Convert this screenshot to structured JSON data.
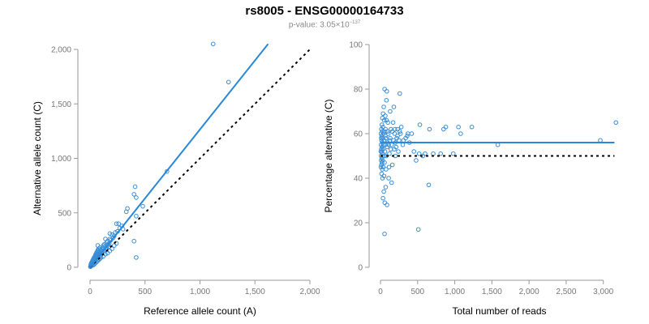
{
  "header": {
    "title": "rs8005 - ENSG00000164733",
    "pvalue_prefix": "p-value: 3.05",
    "pvalue_times": "×",
    "pvalue_base": "10",
    "pvalue_exponent": "−137"
  },
  "colors": {
    "points": "#3b8fd6",
    "fit_line": "#2a88d8",
    "reference_line": "#000000"
  },
  "chart_data": [
    {
      "type": "scatter",
      "xlabel": "Reference allele count (A)",
      "ylabel": "Alternative allele count (C)",
      "xlim": [
        0,
        2000
      ],
      "ylim": [
        0,
        2000
      ],
      "xticks": [
        0,
        500,
        1000,
        1500,
        2000
      ],
      "xtick_labels": [
        "0",
        "500",
        "1,000",
        "1,500",
        "2,000"
      ],
      "yticks": [
        0,
        500,
        1000,
        1500,
        2000
      ],
      "ytick_labels": [
        "0",
        "500",
        "1,000",
        "1,500",
        "2,000"
      ],
      "fit_line": {
        "x": [
          0,
          1620
        ],
        "y": [
          0,
          2050
        ]
      },
      "reference_line": {
        "x": [
          0,
          2000
        ],
        "y": [
          0,
          2000
        ]
      },
      "points": [
        [
          1120,
          2050
        ],
        [
          1260,
          1700
        ],
        [
          700,
          880
        ],
        [
          410,
          740
        ],
        [
          400,
          670
        ],
        [
          420,
          640
        ],
        [
          480,
          560
        ],
        [
          340,
          540
        ],
        [
          330,
          510
        ],
        [
          420,
          470
        ],
        [
          400,
          240
        ],
        [
          420,
          90
        ],
        [
          260,
          400
        ],
        [
          240,
          400
        ],
        [
          230,
          320
        ],
        [
          200,
          300
        ],
        [
          180,
          310
        ],
        [
          180,
          260
        ],
        [
          160,
          240
        ],
        [
          150,
          230
        ],
        [
          140,
          260
        ],
        [
          130,
          210
        ],
        [
          120,
          200
        ],
        [
          110,
          170
        ],
        [
          100,
          160
        ],
        [
          90,
          180
        ],
        [
          80,
          140
        ],
        [
          70,
          200
        ],
        [
          60,
          110
        ],
        [
          55,
          100
        ],
        [
          50,
          90
        ],
        [
          45,
          70
        ],
        [
          40,
          60
        ],
        [
          35,
          50
        ],
        [
          30,
          40
        ],
        [
          25,
          30
        ],
        [
          20,
          25
        ],
        [
          15,
          20
        ],
        [
          10,
          12
        ],
        [
          5,
          8
        ],
        [
          8,
          30
        ],
        [
          12,
          40
        ],
        [
          18,
          45
        ],
        [
          22,
          60
        ],
        [
          28,
          70
        ],
        [
          32,
          80
        ],
        [
          38,
          90
        ],
        [
          42,
          85
        ],
        [
          48,
          110
        ],
        [
          52,
          120
        ],
        [
          58,
          130
        ],
        [
          62,
          140
        ],
        [
          68,
          150
        ],
        [
          72,
          160
        ],
        [
          78,
          170
        ],
        [
          82,
          120
        ],
        [
          88,
          100
        ],
        [
          92,
          130
        ],
        [
          98,
          150
        ],
        [
          105,
          140
        ],
        [
          115,
          180
        ],
        [
          125,
          170
        ],
        [
          135,
          190
        ],
        [
          145,
          160
        ],
        [
          155,
          200
        ],
        [
          165,
          210
        ],
        [
          175,
          220
        ],
        [
          190,
          250
        ],
        [
          210,
          270
        ],
        [
          220,
          290
        ],
        [
          250,
          330
        ],
        [
          270,
          360
        ],
        [
          290,
          380
        ],
        [
          300,
          350
        ],
        [
          30,
          20
        ],
        [
          40,
          30
        ],
        [
          50,
          40
        ],
        [
          60,
          50
        ],
        [
          70,
          60
        ],
        [
          80,
          70
        ],
        [
          90,
          80
        ],
        [
          100,
          90
        ],
        [
          120,
          100
        ],
        [
          140,
          120
        ],
        [
          160,
          130
        ],
        [
          180,
          150
        ],
        [
          200,
          170
        ],
        [
          220,
          200
        ],
        [
          240,
          220
        ],
        [
          20,
          50
        ],
        [
          25,
          45
        ],
        [
          35,
          65
        ],
        [
          45,
          75
        ],
        [
          55,
          85
        ],
        [
          65,
          95
        ],
        [
          75,
          105
        ],
        [
          85,
          115
        ],
        [
          95,
          125
        ],
        [
          110,
          135
        ],
        [
          130,
          155
        ],
        [
          150,
          175
        ],
        [
          170,
          190
        ],
        [
          15,
          35
        ],
        [
          10,
          25
        ],
        [
          5,
          15
        ],
        [
          3,
          5
        ],
        [
          28,
          55
        ],
        [
          33,
          58
        ],
        [
          38,
          72
        ],
        [
          43,
          95
        ],
        [
          53,
          105
        ],
        [
          63,
          118
        ],
        [
          73,
          128
        ],
        [
          83,
          145
        ]
      ]
    },
    {
      "type": "scatter",
      "xlabel": "Total number of reads",
      "ylabel": "Percentage alternative (C)",
      "xlim": [
        0,
        3200
      ],
      "ylim": [
        0,
        100
      ],
      "xticks": [
        0,
        500,
        1000,
        1500,
        2000,
        2500,
        3000
      ],
      "xtick_labels": [
        "0",
        "500",
        "1,000",
        "1,500",
        "2,000",
        "2,500",
        "3,000"
      ],
      "yticks": [
        0,
        20,
        40,
        60,
        80,
        100
      ],
      "ytick_labels": [
        "0",
        "20",
        "40",
        "60",
        "80",
        "100"
      ],
      "fit_line": {
        "x": [
          0,
          3150
        ],
        "y": [
          56,
          56
        ]
      },
      "reference_line": {
        "x": [
          0,
          3150
        ],
        "y": [
          50,
          50
        ]
      },
      "points": [
        [
          3170,
          65
        ],
        [
          2960,
          57
        ],
        [
          1580,
          55
        ],
        [
          1230,
          63
        ],
        [
          1050,
          63
        ],
        [
          1080,
          60
        ],
        [
          980,
          51
        ],
        [
          880,
          63
        ],
        [
          850,
          62
        ],
        [
          810,
          51
        ],
        [
          710,
          51
        ],
        [
          660,
          62
        ],
        [
          650,
          37
        ],
        [
          600,
          51
        ],
        [
          570,
          50
        ],
        [
          530,
          64
        ],
        [
          520,
          51
        ],
        [
          510,
          17
        ],
        [
          480,
          48
        ],
        [
          450,
          52
        ],
        [
          420,
          60
        ],
        [
          390,
          56
        ],
        [
          360,
          59
        ],
        [
          340,
          58
        ],
        [
          300,
          55
        ],
        [
          280,
          63
        ],
        [
          270,
          60
        ],
        [
          260,
          78
        ],
        [
          250,
          57
        ],
        [
          240,
          52
        ],
        [
          230,
          62
        ],
        [
          220,
          58
        ],
        [
          210,
          54
        ],
        [
          200,
          50
        ],
        [
          190,
          60
        ],
        [
          180,
          72
        ],
        [
          170,
          65
        ],
        [
          160,
          46
        ],
        [
          150,
          38
        ],
        [
          150,
          55
        ],
        [
          140,
          62
        ],
        [
          130,
          70
        ],
        [
          125,
          57
        ],
        [
          120,
          51
        ],
        [
          115,
          45
        ],
        [
          110,
          40
        ],
        [
          105,
          60
        ],
        [
          100,
          65
        ],
        [
          95,
          56
        ],
        [
          90,
          54
        ],
        [
          88,
          28
        ],
        [
          85,
          79
        ],
        [
          80,
          75
        ],
        [
          78,
          50
        ],
        [
          75,
          44
        ],
        [
          72,
          58
        ],
        [
          70,
          36
        ],
        [
          68,
          62
        ],
        [
          65,
          68
        ],
        [
          62,
          55
        ],
        [
          60,
          52
        ],
        [
          58,
          29
        ],
        [
          56,
          80
        ],
        [
          55,
          15
        ],
        [
          54,
          47
        ],
        [
          52,
          61
        ],
        [
          50,
          66
        ],
        [
          48,
          41
        ],
        [
          46,
          57
        ],
        [
          45,
          34
        ],
        [
          44,
          72
        ],
        [
          42,
          50
        ],
        [
          40,
          60
        ],
        [
          38,
          55
        ],
        [
          36,
          45
        ],
        [
          35,
          69
        ],
        [
          34,
          31
        ],
        [
          33,
          53
        ],
        [
          32,
          63
        ],
        [
          30,
          48
        ],
        [
          28,
          58
        ],
        [
          27,
          40
        ],
        [
          26,
          67
        ],
        [
          25,
          51
        ],
        [
          24,
          44
        ],
        [
          23,
          56
        ],
        [
          22,
          61
        ],
        [
          21,
          47
        ],
        [
          20,
          54
        ],
        [
          19,
          64
        ],
        [
          18,
          49
        ],
        [
          17,
          52
        ],
        [
          16,
          59
        ],
        [
          15,
          42
        ],
        [
          14,
          57
        ],
        [
          13,
          46
        ],
        [
          12,
          62
        ],
        [
          11,
          53
        ],
        [
          10,
          48
        ],
        [
          10,
          58
        ],
        [
          9,
          55
        ],
        [
          8,
          50
        ],
        [
          7,
          60
        ],
        [
          6,
          45
        ],
        [
          5,
          52
        ],
        [
          200,
          56
        ],
        [
          230,
          59
        ],
        [
          260,
          61
        ],
        [
          310,
          57
        ],
        [
          370,
          60
        ],
        [
          130,
          58
        ],
        [
          140,
          53
        ],
        [
          160,
          61
        ],
        [
          175,
          57
        ],
        [
          185,
          53
        ],
        [
          195,
          62
        ],
        [
          110,
          55
        ],
        [
          95,
          61
        ],
        [
          82,
          66
        ],
        [
          66,
          59
        ]
      ]
    }
  ]
}
